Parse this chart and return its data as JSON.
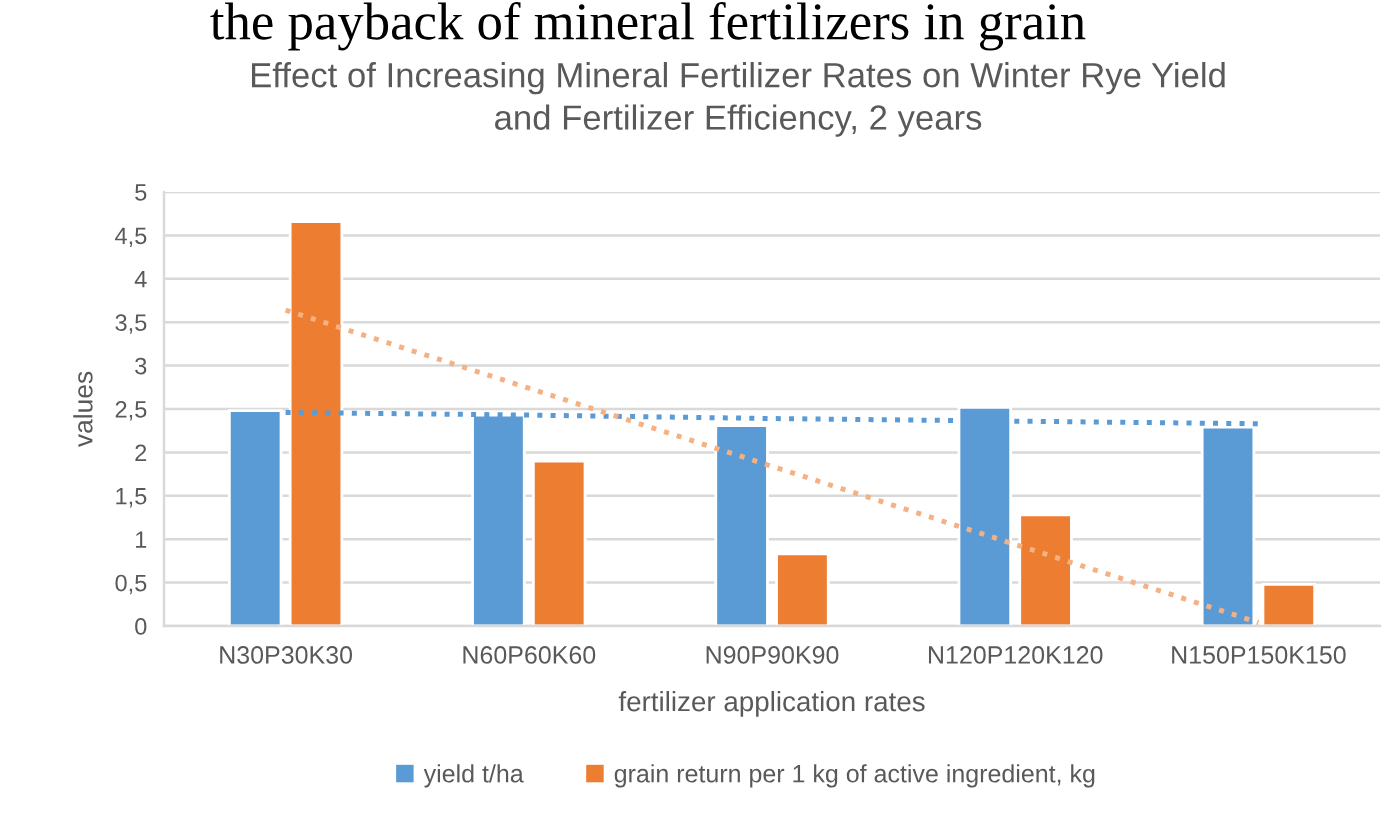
{
  "chart_data": {
    "type": "bar",
    "title": "Effect of Increasing Mineral Fertilizer Rates on Winter Rye Yield\nand Fertilizer Efficiency, 2 years",
    "xlabel": "fertilizer application rates",
    "ylabel": "values",
    "annotations": [
      "the payback of mineral fertilizers in grain"
    ],
    "categories": [
      "N30P30K30",
      "N60P60K60",
      "N90P90K90",
      "N120P120K120",
      "N150P150K150"
    ],
    "series": [
      {
        "name": "yield t/ha",
        "color": "#5b9bd5",
        "values": [
          2.48,
          2.43,
          2.31,
          2.52,
          2.29
        ]
      },
      {
        "name": "grain return per 1 kg of active ingredient, kg",
        "color": "#ed7d31",
        "values": [
          4.66,
          1.9,
          0.83,
          1.28,
          0.48
        ]
      },
      {
        "type": "line",
        "color": "#5b9bd5",
        "line_style": "dotted",
        "values": [
          2.46,
          2.43,
          2.39,
          2.36,
          2.33
        ]
      },
      {
        "type": "line",
        "color": "#f4b183",
        "line_style": "dotted",
        "values": [
          3.64,
          2.74,
          1.84,
          0.94,
          0.04
        ]
      }
    ],
    "ylim": [
      0,
      5
    ],
    "yticks": [
      0,
      {
        "value": 0.5,
        "label": "0,5"
      },
      1,
      {
        "value": 1.5,
        "label": "1,5"
      },
      2,
      {
        "value": 2.5,
        "label": "2,5"
      },
      3,
      {
        "value": 3.5,
        "label": "3,5"
      },
      4,
      {
        "value": 4.5,
        "label": "4,5"
      },
      5
    ],
    "grid": "y",
    "legend": "bottom"
  }
}
